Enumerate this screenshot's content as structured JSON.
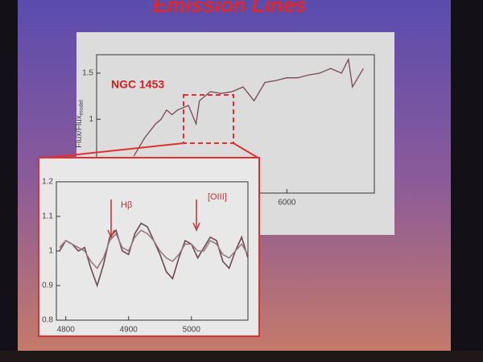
{
  "slide_title": "Emission Lines",
  "chart_data": [
    {
      "type": "line",
      "annotation": "NGC 1453",
      "ylabel": "Flux/Flux",
      "ylabel_sub": "model",
      "x": [
        4600,
        4700,
        4800,
        4850,
        4900,
        4950,
        5000,
        5100,
        5170,
        5200,
        5300,
        5400,
        5500,
        5600,
        5700,
        5800,
        5900,
        6000,
        6100,
        6200,
        6300,
        6400,
        6500,
        6563,
        6600,
        6700
      ],
      "values": [
        0.6,
        0.8,
        0.95,
        1.0,
        1.1,
        1.05,
        1.1,
        1.15,
        0.95,
        1.2,
        1.3,
        1.28,
        1.3,
        1.35,
        1.2,
        1.4,
        1.42,
        1.45,
        1.45,
        1.48,
        1.5,
        1.55,
        1.5,
        1.65,
        1.35,
        1.55
      ],
      "color": "#7a4a52",
      "xlim": [
        4260,
        6800
      ],
      "ylim": [
        0.2,
        1.7
      ],
      "xticks": [
        6000
      ],
      "yticks": [
        1,
        1.5
      ]
    },
    {
      "type": "line",
      "annotations": [
        "Hβ",
        "[OIII]"
      ],
      "x": [
        4790,
        4800,
        4810,
        4820,
        4830,
        4840,
        4850,
        4860,
        4870,
        4880,
        4890,
        4900,
        4910,
        4920,
        4930,
        4940,
        4950,
        4960,
        4970,
        4980,
        4990,
        5000,
        5010,
        5020,
        5030,
        5040,
        5050,
        5060,
        5070,
        5080,
        5090
      ],
      "series": [
        {
          "color": "#6a4a50",
          "values": [
            1.0,
            1.03,
            1.02,
            1.0,
            1.01,
            0.95,
            0.9,
            0.96,
            1.04,
            1.06,
            1.0,
            0.99,
            1.05,
            1.08,
            1.07,
            1.03,
            0.99,
            0.94,
            0.92,
            0.98,
            1.03,
            1.02,
            0.98,
            1.01,
            1.04,
            1.03,
            0.97,
            0.95,
            1.0,
            1.04,
            0.98
          ]
        },
        {
          "color": "#9a7a80",
          "values": [
            1.01,
            1.03,
            1.02,
            1.01,
            1.0,
            0.97,
            0.95,
            0.98,
            1.03,
            1.05,
            1.01,
            1.0,
            1.04,
            1.06,
            1.05,
            1.03,
            1.0,
            0.98,
            0.97,
            0.99,
            1.02,
            1.02,
            1.0,
            1.0,
            1.03,
            1.02,
            0.99,
            0.98,
            1.0,
            1.02,
            0.99
          ]
        }
      ],
      "xlim": [
        4785,
        5090
      ],
      "ylim": [
        0.8,
        1.2
      ],
      "xticks": [
        4800,
        4900,
        5000
      ],
      "yticks": [
        0.8,
        0.9,
        1,
        1.1,
        1.2
      ]
    }
  ]
}
